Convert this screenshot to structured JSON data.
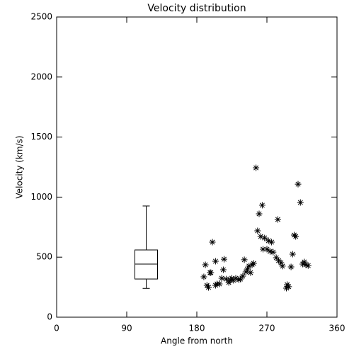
{
  "chart_data": {
    "type": "scatter",
    "title": "Velocity distribution",
    "xlabel": "Angle from north",
    "ylabel": "Velocity (km/s)",
    "xlim": [
      0,
      360
    ],
    "xticks": [
      0,
      90,
      180,
      270,
      360
    ],
    "ylim": [
      0,
      2500
    ],
    "yticks": [
      0,
      500,
      1000,
      1500,
      2000,
      2500
    ],
    "color": "#000000",
    "x": [
      189,
      191,
      193,
      195,
      197,
      198,
      200,
      204,
      204,
      206,
      209,
      212,
      214,
      215,
      218,
      221,
      223,
      225,
      227,
      230,
      234,
      236,
      239,
      241,
      243,
      245,
      247,
      249,
      251,
      253,
      256,
      258,
      260,
      262,
      264,
      265,
      267,
      270,
      272,
      274,
      276,
      278,
      282,
      284,
      285,
      288,
      290,
      295,
      296,
      298,
      301,
      303,
      305,
      307,
      310,
      313,
      316,
      318,
      320,
      323
    ],
    "values": [
      336,
      436,
      265,
      248,
      371,
      371,
      625,
      466,
      265,
      277,
      277,
      324,
      395,
      483,
      318,
      289,
      307,
      324,
      307,
      324,
      312,
      318,
      342,
      478,
      377,
      401,
      425,
      371,
      436,
      448,
      1244,
      719,
      861,
      672,
      932,
      566,
      660,
      566,
      637,
      548,
      625,
      542,
      495,
      814,
      472,
      454,
      425,
      242,
      271,
      254,
      419,
      525,
      684,
      672,
      1108,
      955,
      442,
      460,
      436,
      430
    ],
    "boxplot": {
      "x": 115,
      "whislo": 240,
      "q1": 318,
      "med": 442,
      "q3": 560,
      "whishi": 926
    }
  }
}
